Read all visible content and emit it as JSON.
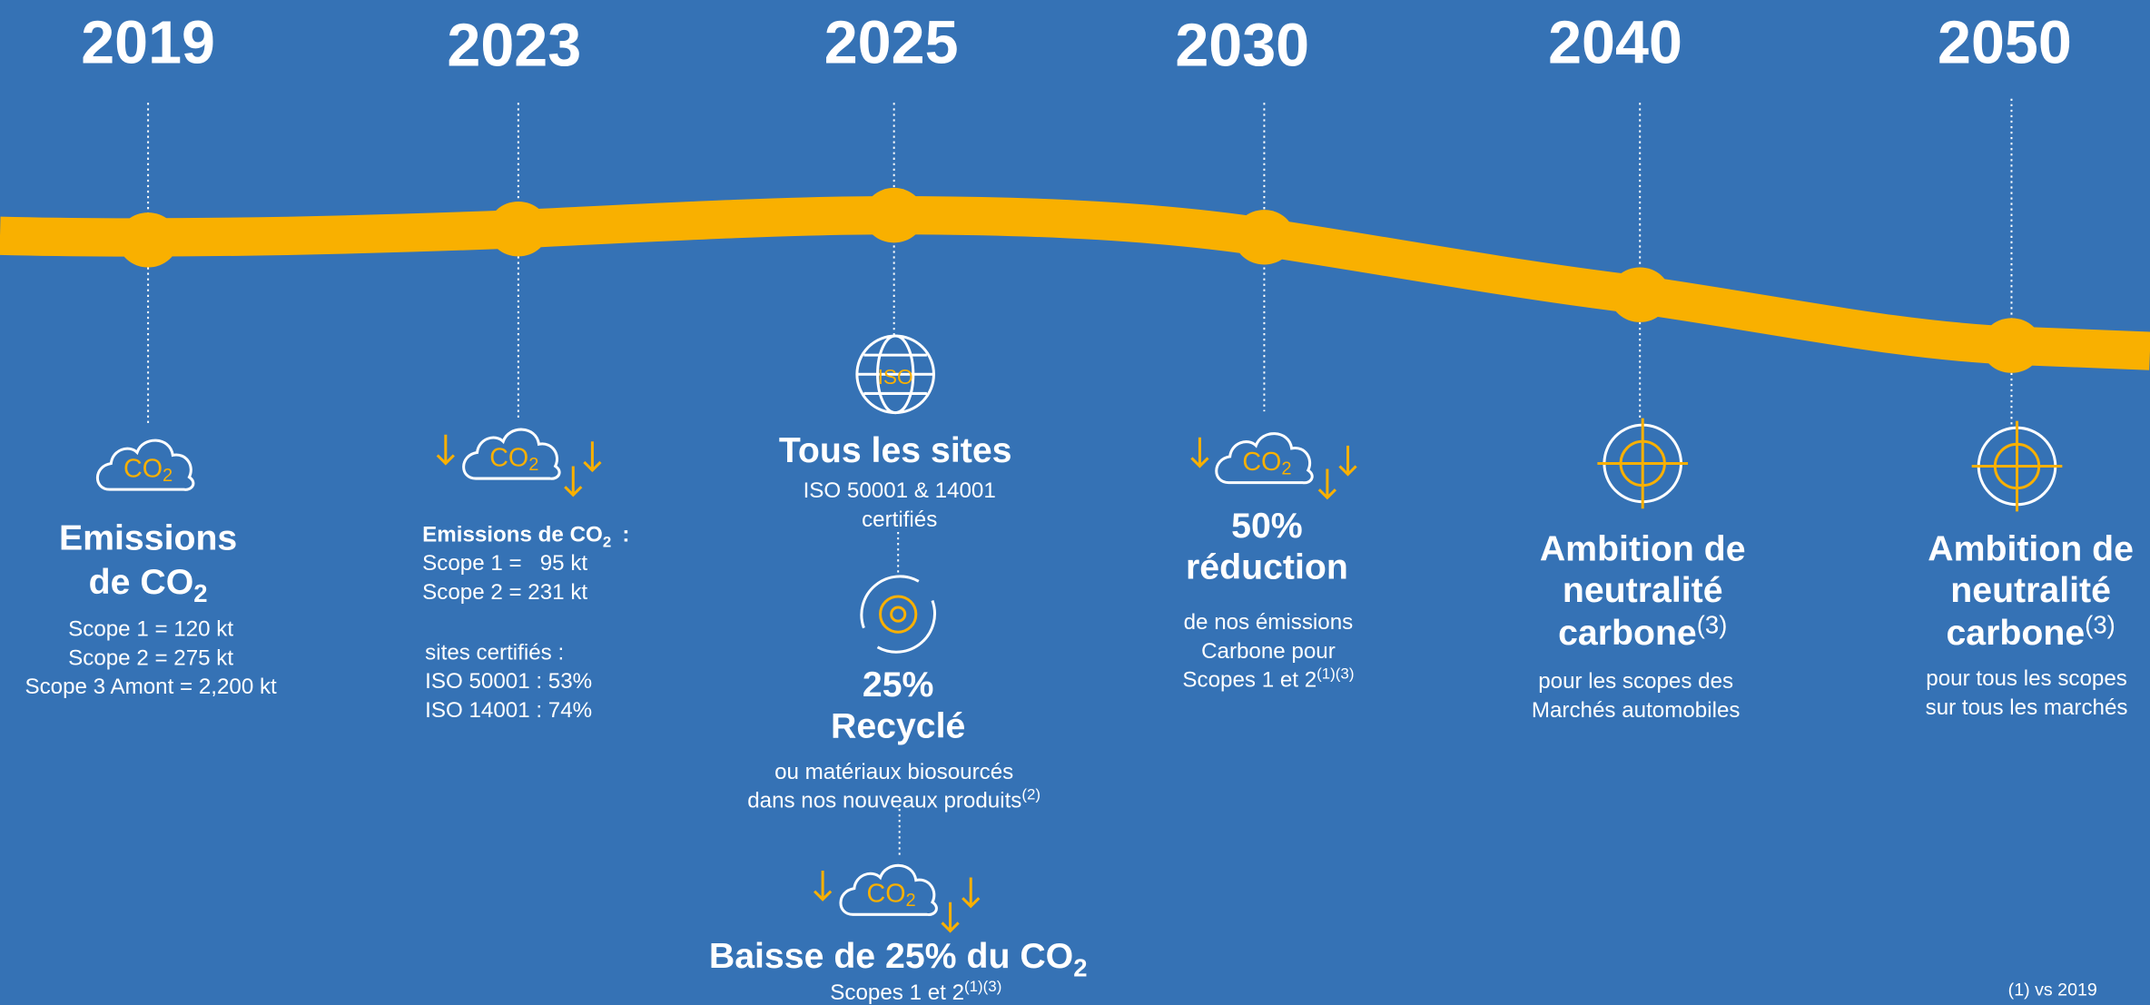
{
  "icons": {
    "co2": "CO",
    "co2_sub": "2",
    "iso": "ISO"
  },
  "milestones": [
    {
      "year": "2019",
      "title": [
        "Emissions",
        "de CO"
      ],
      "title_sub": "2",
      "lines": [
        "Scope 1 = 120 kt",
        "Scope 2 = 275 kt",
        "Scope 3 Amont = 2,200 kt"
      ]
    },
    {
      "year": "2023",
      "heading": "Emissions de CO",
      "heading_sub": "2",
      "heading_end": ":",
      "lines": [
        "Scope 1 =   95 kt",
        "Scope 2 = 231 kt"
      ],
      "lines2": [
        "sites certifiés :",
        "ISO 50001 : 53%",
        "ISO 14001 : 74%"
      ]
    },
    {
      "year": "2025",
      "title": "Tous les sites",
      "lines": [
        "ISO 50001 & 14001",
        "certifiés"
      ],
      "title2": [
        "25%",
        "Recyclé"
      ],
      "lines2": [
        "ou matériaux biosourcés",
        "dans nos nouveaux produits"
      ],
      "lines2_sup": "(2)",
      "title3": "Baisse de 25% du CO",
      "title3_sub": "2",
      "line3": "Scopes 1 et 2",
      "line3_sup": "(1)(3)"
    },
    {
      "year": "2030",
      "title": [
        "50%",
        "réduction"
      ],
      "lines": [
        "de nos émissions",
        "Carbone pour",
        "Scopes 1 et 2"
      ],
      "lines_sup": "(1)(3)"
    },
    {
      "year": "2040",
      "title": [
        "Ambition de",
        "neutralité",
        "carbone"
      ],
      "title_sup": "(3)",
      "lines": [
        "pour les scopes des",
        "Marchés automobiles"
      ]
    },
    {
      "year": "2050",
      "title": [
        "Ambition de",
        "neutralité",
        "carbone"
      ],
      "title_sup": "(3)",
      "lines": [
        "pour tous les scopes",
        "sur tous les marchés"
      ]
    }
  ],
  "footnote": "(1) vs 2019"
}
